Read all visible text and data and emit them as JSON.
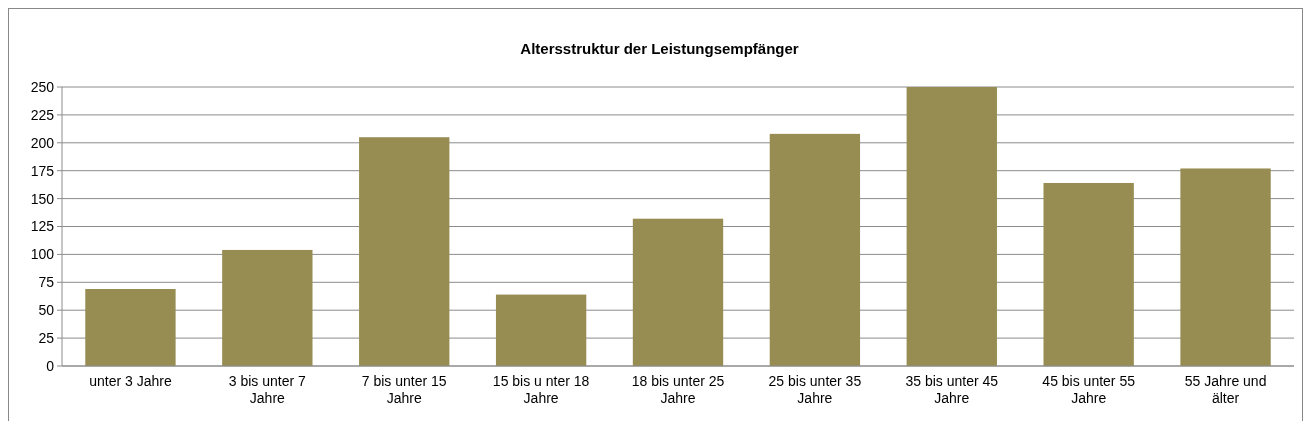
{
  "chart_data": {
    "type": "bar",
    "title": "Altersstruktur  der Leistungsempfänger",
    "categories": [
      "unter 3 Jahre",
      "3 bis unter 7 Jahre",
      "7 bis unter 15 Jahre",
      "15 bis u nter 18 Jahre",
      "18 bis unter 25 Jahre",
      "25 bis unter 35 Jahre",
      "35 bis unter 45 Jahre",
      "45 bis unter 55 Jahre",
      "55 Jahre und älter"
    ],
    "values": [
      69,
      104,
      205,
      64,
      132,
      208,
      250,
      164,
      177
    ],
    "color": "#978d52",
    "ylim": [
      0,
      250
    ],
    "yticks": [
      0,
      25,
      50,
      75,
      100,
      125,
      150,
      175,
      200,
      225,
      250
    ],
    "grid": "y"
  }
}
